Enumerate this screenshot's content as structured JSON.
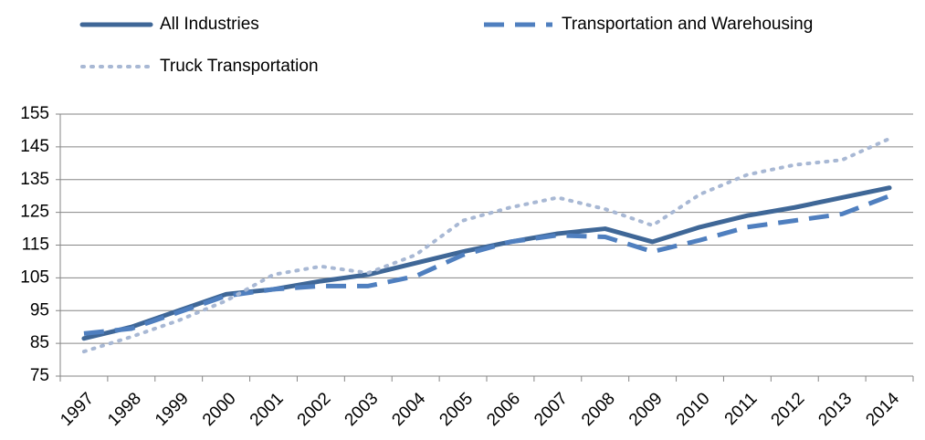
{
  "chart_data": {
    "type": "line",
    "categories": [
      "1997",
      "1998",
      "1999",
      "2000",
      "2001",
      "2002",
      "2003",
      "2004",
      "2005",
      "2006",
      "2007",
      "2008",
      "2009",
      "2010",
      "2011",
      "2012",
      "2013",
      "2014"
    ],
    "series": [
      {
        "name": "All Industries",
        "color": "#3f6797",
        "style": "solid",
        "values": [
          86.5,
          90,
          95,
          100,
          101.5,
          104,
          106,
          109.5,
          113,
          116,
          118.5,
          120,
          116,
          120.5,
          124,
          126.5,
          129.5,
          132.5
        ]
      },
      {
        "name": "Transportation and Warehousing",
        "color": "#4f7fbf",
        "style": "dashed",
        "values": [
          88,
          89.5,
          94.5,
          99.5,
          101.5,
          102.5,
          102.5,
          105.5,
          112,
          116,
          118,
          117.5,
          113,
          116.5,
          120.5,
          122.5,
          124.5,
          130
        ]
      },
      {
        "name": "Truck Transportation",
        "color": "#a8b8d4",
        "style": "dotted",
        "values": [
          82.5,
          87,
          92,
          98,
          106,
          108.5,
          106.5,
          112,
          122.5,
          126.5,
          129.5,
          126,
          121,
          130.5,
          136.5,
          139.5,
          141,
          147.5
        ]
      }
    ],
    "ylim": [
      75,
      155
    ],
    "yticks": [
      75,
      85,
      95,
      105,
      115,
      125,
      135,
      145,
      155
    ],
    "grid": true,
    "legend": "top"
  }
}
